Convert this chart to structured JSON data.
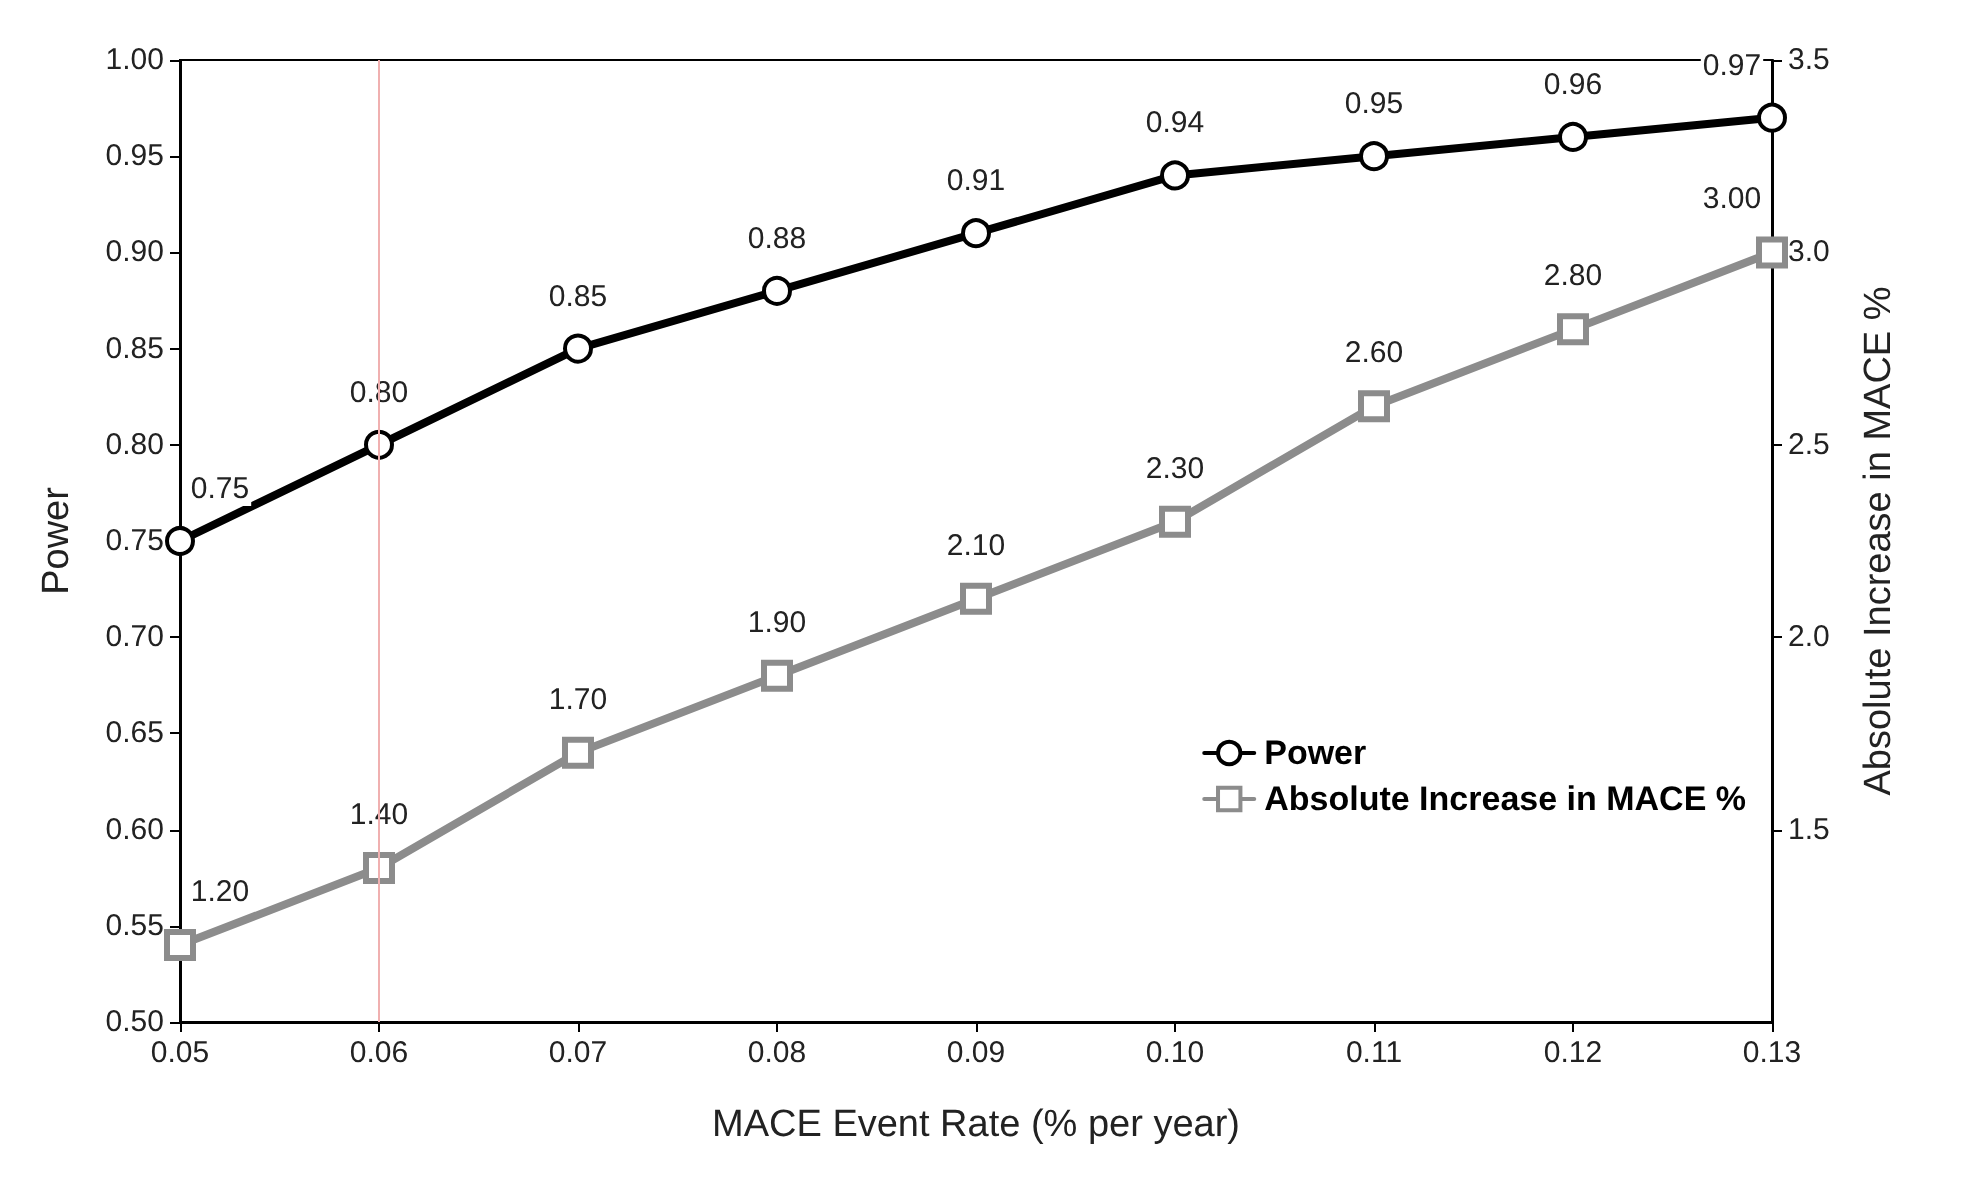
{
  "chart_data": {
    "type": "line",
    "xlabel": "MACE Event Rate (% per year)",
    "ylabel": "Power",
    "y2label": "Absolute Increase in MACE %",
    "x": [
      0.05,
      0.06,
      0.07,
      0.08,
      0.09,
      0.1,
      0.11,
      0.12,
      0.13
    ],
    "series": [
      {
        "name": "Power",
        "color": "#000000",
        "marker": "circle",
        "values": [
          0.75,
          0.8,
          0.85,
          0.88,
          0.91,
          0.94,
          0.95,
          0.96,
          0.97
        ],
        "value_labels": [
          "0.75",
          "0.80",
          "0.85",
          "0.88",
          "0.91",
          "0.94",
          "0.95",
          "0.96",
          "0.97"
        ]
      },
      {
        "name": "Absolute Increase in MACE %",
        "color": "#8c8c8c",
        "marker": "square",
        "axis": "y2",
        "values": [
          1.2,
          1.4,
          1.7,
          1.9,
          2.1,
          2.3,
          2.6,
          2.8,
          3.0
        ],
        "value_labels": [
          "1.20",
          "1.40",
          "1.70",
          "1.90",
          "2.10",
          "2.30",
          "2.60",
          "2.80",
          "3.00"
        ]
      }
    ],
    "xlim": [
      0.05,
      0.13
    ],
    "xticks": [
      {
        "value": 0.05,
        "label": "0.05"
      },
      {
        "value": 0.06,
        "label": "0.06"
      },
      {
        "value": 0.07,
        "label": "0.07"
      },
      {
        "value": 0.08,
        "label": "0.08"
      },
      {
        "value": 0.09,
        "label": "0.09"
      },
      {
        "value": 0.1,
        "label": "0.10"
      },
      {
        "value": 0.11,
        "label": "0.11"
      },
      {
        "value": 0.12,
        "label": "0.12"
      },
      {
        "value": 0.13,
        "label": "0.13"
      }
    ],
    "ylim": [
      0.5,
      1.0
    ],
    "yticks": [
      {
        "value": 0.5,
        "label": "0.50"
      },
      {
        "value": 0.55,
        "label": "0.55"
      },
      {
        "value": 0.6,
        "label": "0.60"
      },
      {
        "value": 0.65,
        "label": "0.65"
      },
      {
        "value": 0.7,
        "label": "0.70"
      },
      {
        "value": 0.75,
        "label": "0.75"
      },
      {
        "value": 0.8,
        "label": "0.80"
      },
      {
        "value": 0.85,
        "label": "0.85"
      },
      {
        "value": 0.9,
        "label": "0.90"
      },
      {
        "value": 0.95,
        "label": "0.95"
      },
      {
        "value": 1.0,
        "label": "1.00"
      }
    ],
    "y2lim": [
      1.0,
      3.5
    ],
    "y2ticks": [
      1.5,
      {
        "value": 2.0,
        "label": "2.0"
      },
      2.5,
      {
        "value": 3.0,
        "label": "3.0"
      },
      3.5
    ],
    "ref_lines": [
      {
        "axis": "x",
        "value": 0.06,
        "color": "#f0b0b0"
      }
    ],
    "legend": "bottom right",
    "grid": false,
    "line_style": "solid"
  }
}
